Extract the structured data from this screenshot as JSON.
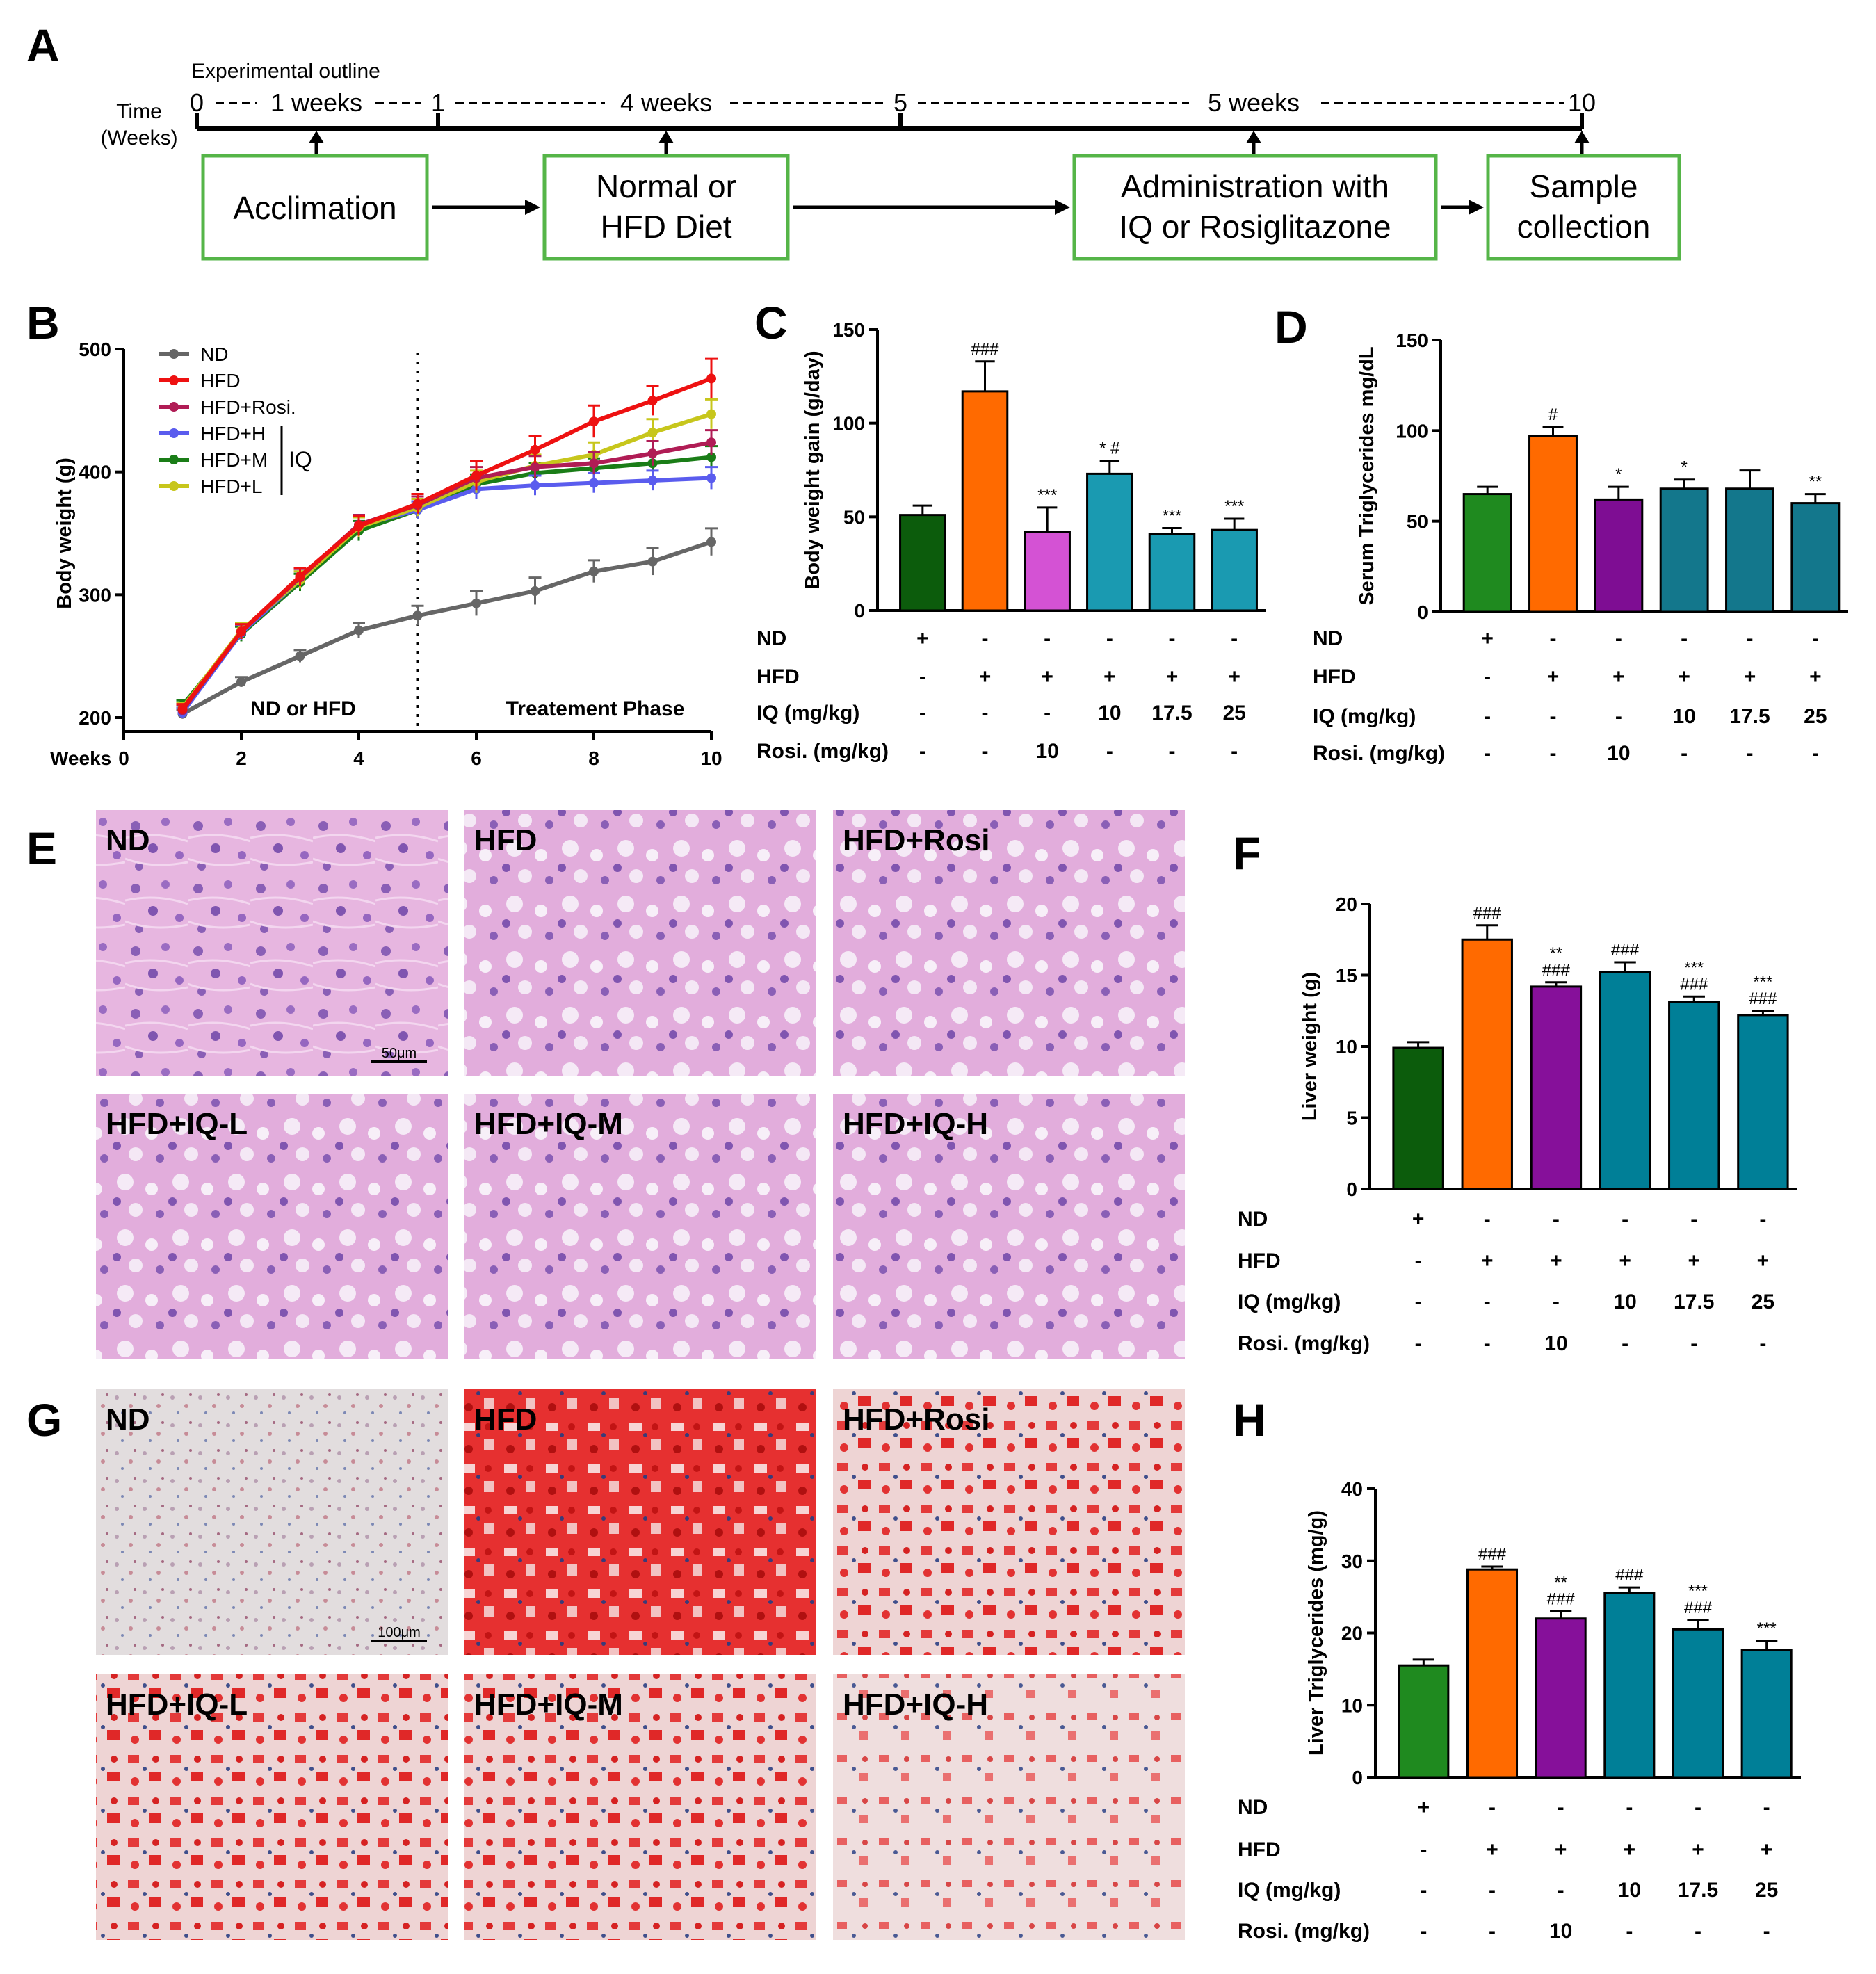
{
  "panels": {
    "A": {
      "letter": "A",
      "outline_title": "Experimental outline",
      "time_label_1": "Time",
      "time_label_2": "(Weeks)",
      "timeline_ticks": [
        "0",
        "1",
        "5",
        "10"
      ],
      "durations": [
        "1 weeks",
        "4 weeks",
        "5 weeks"
      ],
      "stages": [
        {
          "line1": "Acclimation",
          "line2": ""
        },
        {
          "line1": "Normal or",
          "line2": "HFD Diet"
        },
        {
          "line1": "Administration with",
          "line2": "IQ or Rosiglitazone"
        },
        {
          "line1": "Sample",
          "line2": "collection"
        }
      ]
    },
    "E": {
      "letter": "E",
      "images": [
        "ND",
        "HFD",
        "HFD+Rosi",
        "HFD+IQ-L",
        "HFD+IQ-M",
        "HFD+IQ-H"
      ],
      "scale_bar": "50μm",
      "stain": "H&E"
    },
    "G": {
      "letter": "G",
      "images": [
        "ND",
        "HFD",
        "HFD+Rosi",
        "HFD+IQ-L",
        "HFD+IQ-M",
        "HFD+IQ-H"
      ],
      "scale_bar": "100μm",
      "stain": "Oil Red O"
    },
    "treatment_table": {
      "row_labels": [
        "ND",
        "HFD",
        "IQ (mg/kg)",
        "Rosi. (mg/kg)"
      ],
      "rows": [
        [
          "+",
          "-",
          "-",
          "-",
          "-",
          "-"
        ],
        [
          "-",
          "+",
          "+",
          "+",
          "+",
          "+"
        ],
        [
          "-",
          "-",
          "-",
          "10",
          "17.5",
          "25"
        ],
        [
          "-",
          "-",
          "10",
          "-",
          "-",
          "-"
        ]
      ]
    }
  },
  "chart_data": [
    {
      "panel": "B",
      "type": "line",
      "xlabel": "Weeks",
      "ylabel": "Body weight (g)",
      "xlim": [
        0,
        10
      ],
      "ylim": [
        200,
        500
      ],
      "xticks": [
        "0",
        "2",
        "4",
        "6",
        "8",
        "10"
      ],
      "yticks": [
        "200",
        "300",
        "400",
        "500"
      ],
      "x": [
        1,
        2,
        3,
        4,
        5,
        6,
        7,
        8,
        9,
        10
      ],
      "phase_divider_week": 5,
      "phase_labels": [
        "ND or HFD",
        "Treatement Phase"
      ],
      "legend_bracket_label": "IQ",
      "legend_placement": "top-left",
      "series": [
        {
          "name": "ND",
          "color": "#666666",
          "values": [
            203,
            229,
            250,
            271,
            283,
            293,
            303,
            319,
            327,
            343
          ],
          "errors": [
            3,
            4,
            5,
            6,
            8,
            10,
            11,
            9,
            11,
            11
          ]
        },
        {
          "name": "HFD",
          "color": "#ee1111",
          "values": [
            207,
            270,
            315,
            356,
            374,
            397,
            418,
            441,
            458,
            476
          ],
          "errors": [
            4,
            6,
            7,
            8,
            8,
            12,
            11,
            13,
            12,
            16
          ]
        },
        {
          "name": "HFD+Rosi.",
          "color": "#b01c55",
          "values": [
            206,
            270,
            314,
            357,
            373,
            395,
            404,
            407,
            415,
            424
          ],
          "errors": [
            4,
            6,
            7,
            8,
            7,
            9,
            9,
            9,
            10,
            10
          ]
        },
        {
          "name": "HFD+H",
          "color": "#5a5cee",
          "values": [
            204,
            269,
            312,
            356,
            369,
            386,
            389,
            391,
            393,
            395
          ],
          "errors": [
            4,
            6,
            7,
            8,
            7,
            8,
            8,
            8,
            8,
            9
          ]
        },
        {
          "name": "HFD+M",
          "color": "#1a7d17",
          "values": [
            210,
            268,
            310,
            352,
            369,
            390,
            399,
            403,
            407,
            412
          ],
          "errors": [
            4,
            6,
            7,
            8,
            7,
            8,
            8,
            8,
            8,
            9
          ]
        },
        {
          "name": "HFD+L",
          "color": "#c7c61c",
          "values": [
            208,
            271,
            312,
            355,
            371,
            392,
            405,
            414,
            432,
            447
          ],
          "errors": [
            4,
            6,
            7,
            8,
            7,
            9,
            9,
            10,
            11,
            12
          ]
        }
      ]
    },
    {
      "panel": "C",
      "type": "bar",
      "ylabel": "Body weight gain (g/day)",
      "ylim": [
        0,
        150
      ],
      "yticks": [
        "0",
        "50",
        "100",
        "150"
      ],
      "values": [
        51,
        117,
        42,
        73,
        41,
        43
      ],
      "errors": [
        5,
        16,
        13,
        7,
        3,
        6
      ],
      "colors": [
        "#0c5c0c",
        "#ff6a00",
        "#d452d4",
        "#1a9ab1",
        "#1a9ab1",
        "#1a9ab1"
      ],
      "significance": [
        "",
        "###",
        "***",
        "* #",
        "***",
        "***"
      ]
    },
    {
      "panel": "D",
      "type": "bar",
      "ylabel": "Serum Triglycerides mg/dL",
      "ylim": [
        0,
        150
      ],
      "yticks": [
        "0",
        "50",
        "100",
        "150"
      ],
      "values": [
        65,
        97,
        62,
        68,
        68,
        60
      ],
      "errors": [
        4,
        5,
        7,
        5,
        10,
        5
      ],
      "colors": [
        "#1f8a1f",
        "#ff6a00",
        "#7e0d93",
        "#13778c",
        "#13778c",
        "#13778c"
      ],
      "significance": [
        "",
        "#",
        "*",
        "*",
        "",
        "**"
      ]
    },
    {
      "panel": "F",
      "type": "bar",
      "ylabel": "Liver weight (g)",
      "ylim": [
        0,
        20
      ],
      "yticks": [
        "0",
        "5",
        "10",
        "15",
        "20"
      ],
      "values": [
        9.9,
        17.5,
        14.2,
        15.2,
        13.1,
        12.2
      ],
      "errors": [
        0.4,
        1.0,
        0.3,
        0.7,
        0.4,
        0.3
      ],
      "colors": [
        "#0c5c0c",
        "#ff6a00",
        "#86109a",
        "#007f97",
        "#007f97",
        "#007f97"
      ],
      "significance": [
        "",
        "###",
        "**\n###",
        "###",
        "***\n###",
        "***\n###"
      ]
    },
    {
      "panel": "H",
      "type": "bar",
      "ylabel": "Liver Triglycerides (mg/g)",
      "ylim": [
        0,
        40
      ],
      "yticks": [
        "0",
        "10",
        "20",
        "30",
        "40"
      ],
      "values": [
        15.5,
        28.8,
        22.0,
        25.5,
        20.5,
        17.6
      ],
      "errors": [
        0.8,
        0.4,
        1.0,
        0.8,
        1.3,
        1.3
      ],
      "colors": [
        "#1f8a1f",
        "#ff6a00",
        "#86109a",
        "#007f97",
        "#007f97",
        "#007f97"
      ],
      "significance": [
        "",
        "###",
        "**\n###",
        "###",
        "***\n###",
        "***"
      ]
    }
  ]
}
